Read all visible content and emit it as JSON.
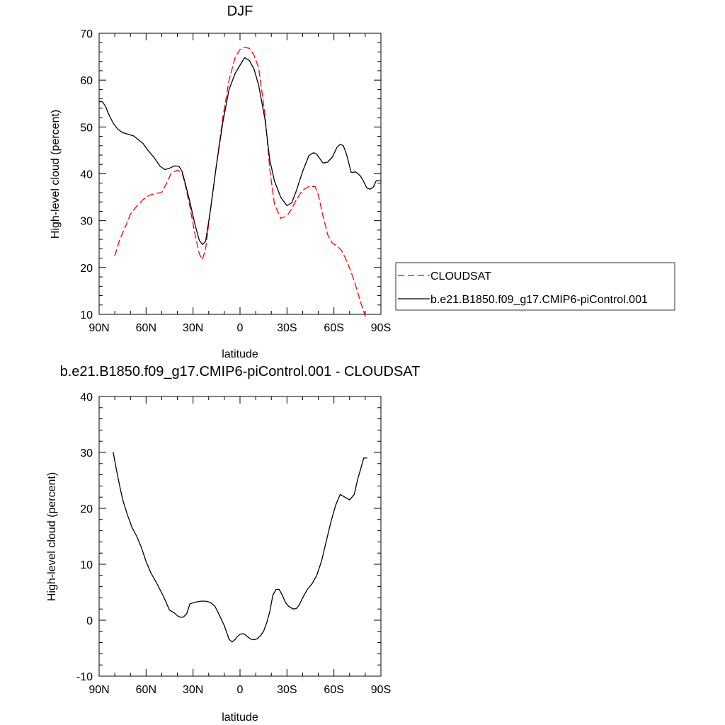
{
  "chart_data": [
    {
      "type": "line",
      "title": "DJF",
      "xlabel": "latitude",
      "ylabel": "High-level cloud (percent)",
      "xlim": [
        -90,
        90
      ],
      "ylim": [
        10,
        70
      ],
      "xticks": [
        {
          "value": -90,
          "label": "90N"
        },
        {
          "value": -60,
          "label": "60N"
        },
        {
          "value": -30,
          "label": "30N"
        },
        {
          "value": 0,
          "label": "0"
        },
        {
          "value": 30,
          "label": "30S"
        },
        {
          "value": 60,
          "label": "60S"
        },
        {
          "value": 90,
          "label": "90S"
        }
      ],
      "yticks": [
        10,
        20,
        30,
        40,
        50,
        60,
        70
      ],
      "grid": false,
      "legend_position": "right",
      "series": [
        {
          "name": "CLOUDSAT",
          "color": "#ff0000",
          "dash": "dashed",
          "x": [
            -80,
            -77,
            -73,
            -70,
            -66,
            -62,
            -58,
            -54,
            -50,
            -47,
            -44,
            -40,
            -37,
            -35,
            -32,
            -29,
            -26,
            -24,
            -22,
            -19,
            -15,
            -11,
            -7,
            -3,
            0,
            3,
            6,
            9,
            12,
            16,
            19,
            22,
            26,
            30,
            33,
            36,
            40,
            44,
            48,
            50,
            53,
            56,
            59,
            62,
            65,
            68,
            71,
            74,
            77,
            80
          ],
          "y": [
            22.5,
            25.8,
            28.9,
            31.4,
            33.1,
            34.5,
            35.4,
            35.8,
            36.0,
            37.9,
            40.1,
            40.8,
            40.2,
            37.6,
            33.0,
            27.5,
            22.9,
            21.7,
            24.0,
            32.0,
            42.0,
            52.0,
            60.0,
            65.0,
            66.5,
            67.0,
            66.8,
            65.3,
            62.5,
            52.5,
            41.0,
            33.5,
            30.5,
            31.0,
            32.5,
            34.5,
            36.5,
            37.3,
            37.3,
            35.5,
            31.0,
            27.0,
            25.2,
            24.6,
            23.6,
            21.5,
            19.0,
            16.0,
            12.6,
            9.6
          ]
        },
        {
          "name": "b.e21.B1850.f09_g17.CMIP6-piControl.001",
          "color": "#000000",
          "dash": "solid",
          "x": [
            -90,
            -88,
            -86,
            -84,
            -81,
            -78,
            -75,
            -72,
            -68,
            -65,
            -62,
            -59,
            -55,
            -51,
            -48,
            -45,
            -42,
            -39,
            -37,
            -35,
            -32,
            -29,
            -26,
            -24,
            -22,
            -19,
            -15,
            -11,
            -7,
            -3,
            0,
            3,
            6,
            9,
            12,
            16,
            19,
            22,
            26,
            30,
            33,
            36,
            40,
            44,
            47,
            49,
            51,
            53,
            56,
            59,
            62,
            64,
            66,
            68,
            71,
            74,
            77,
            79,
            81,
            83,
            85,
            87,
            88,
            90
          ],
          "y": [
            55.4,
            55.4,
            54.5,
            52.8,
            50.8,
            49.5,
            48.8,
            48.5,
            48.1,
            47.3,
            46.5,
            45.1,
            43.5,
            41.6,
            40.9,
            41.2,
            41.7,
            41.6,
            40.5,
            38.0,
            34.0,
            29.5,
            25.8,
            24.9,
            25.6,
            32.0,
            42.0,
            51.0,
            58.0,
            61.5,
            63.2,
            64.8,
            64.2,
            62.3,
            58.8,
            51.5,
            43.0,
            38.5,
            35.0,
            33.2,
            33.8,
            36.4,
            40.5,
            43.9,
            44.5,
            44.2,
            43.2,
            42.3,
            42.5,
            43.6,
            45.7,
            46.3,
            46.0,
            44.2,
            40.3,
            40.4,
            39.5,
            38.3,
            37.0,
            36.7,
            37.1,
            38.5,
            38.5,
            38.5
          ]
        }
      ]
    },
    {
      "type": "line",
      "title": "b.e21.B1850.f09_g17.CMIP6-piControl.001 - CLOUDSAT",
      "xlabel": "latitude",
      "ylabel": "High-level cloud (percent)",
      "xlim": [
        -90,
        90
      ],
      "ylim": [
        -10,
        40
      ],
      "xticks": [
        {
          "value": -90,
          "label": "90N"
        },
        {
          "value": -60,
          "label": "60N"
        },
        {
          "value": -30,
          "label": "30N"
        },
        {
          "value": 0,
          "label": "0"
        },
        {
          "value": 30,
          "label": "30S"
        },
        {
          "value": 60,
          "label": "60S"
        },
        {
          "value": 90,
          "label": "90S"
        }
      ],
      "yticks": [
        -10,
        0,
        10,
        20,
        30,
        40
      ],
      "grid": false,
      "series": [
        {
          "color": "#000000",
          "dash": "solid",
          "x": [
            -81,
            -79,
            -77,
            -75,
            -72,
            -69,
            -66,
            -63,
            -60,
            -57,
            -53,
            -49,
            -45,
            -42,
            -40,
            -38,
            -36,
            -34,
            -32,
            -29,
            -27,
            -25,
            -22,
            -19,
            -16,
            -13,
            -10,
            -7,
            -5,
            -3,
            -2,
            0,
            2,
            3,
            5,
            7,
            9,
            11,
            13,
            15,
            17,
            19,
            21,
            23,
            25,
            27,
            29,
            31,
            34,
            36,
            38,
            40,
            43,
            46,
            49,
            52,
            55,
            58,
            61,
            64,
            67,
            70,
            73,
            75,
            77,
            79,
            81
          ],
          "y": [
            30.0,
            27.0,
            24.2,
            21.6,
            18.9,
            16.6,
            15.0,
            13.0,
            10.5,
            8.5,
            6.5,
            4.3,
            1.8,
            1.3,
            0.8,
            0.5,
            0.6,
            1.2,
            2.9,
            3.2,
            3.3,
            3.4,
            3.4,
            3.2,
            2.5,
            0.8,
            -1.0,
            -3.4,
            -3.9,
            -3.4,
            -3.0,
            -2.5,
            -2.4,
            -2.5,
            -3.0,
            -3.4,
            -3.5,
            -3.3,
            -2.8,
            -2.0,
            -0.5,
            1.5,
            4.5,
            5.5,
            5.5,
            4.5,
            3.2,
            2.5,
            2.0,
            2.1,
            2.8,
            4.0,
            5.5,
            6.5,
            8.0,
            10.5,
            14.0,
            17.5,
            20.5,
            22.5,
            22.0,
            21.5,
            22.5,
            25.0,
            27.0,
            29.0,
            29.0
          ]
        }
      ]
    }
  ]
}
